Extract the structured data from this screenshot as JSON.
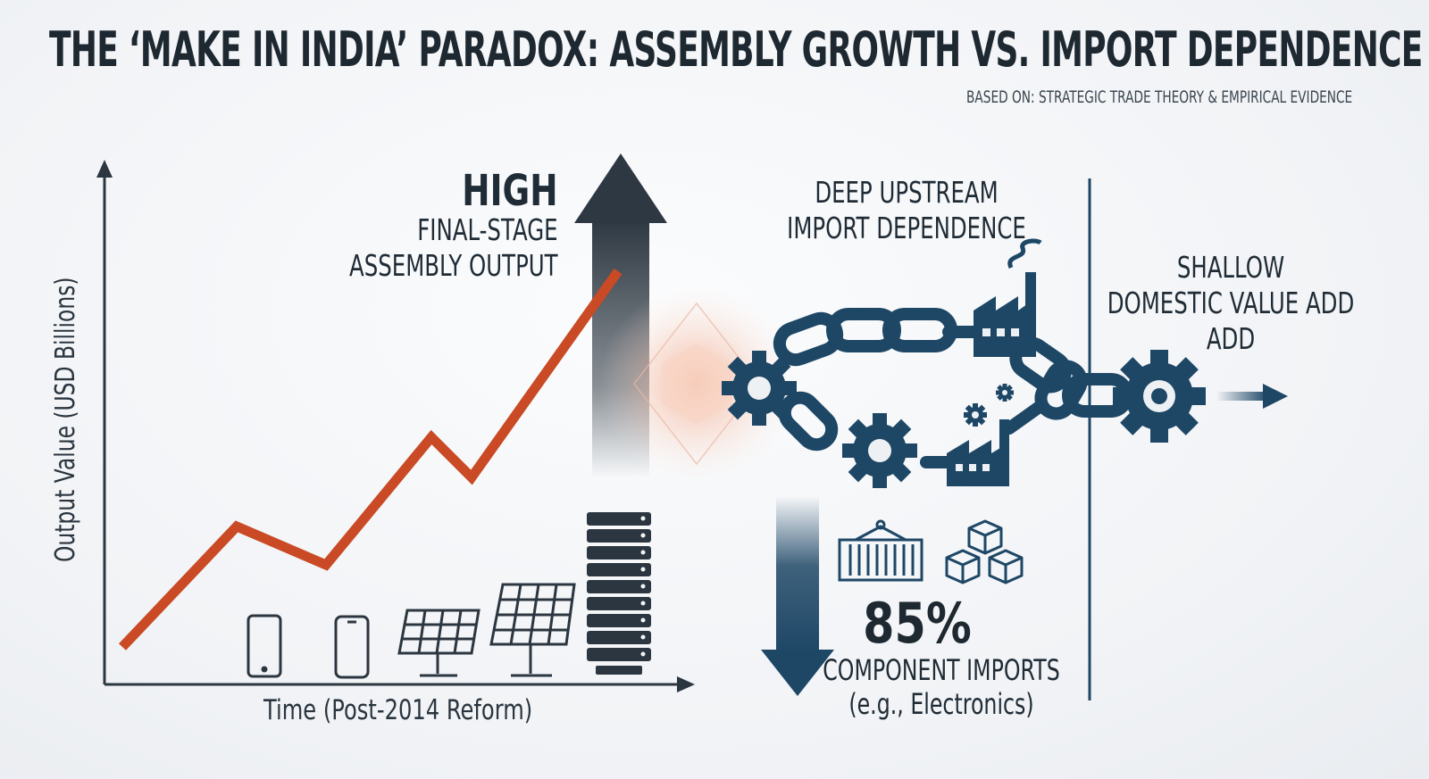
{
  "title": "THE ‘MAKE IN INDIA’ PARADOX: ASSEMBLY GROWTH VS. IMPORT DEPENDENCE",
  "subtitle": "BASED ON: STRATEGIC TRADE THEORY & EMPIRICAL EVIDENCE",
  "high": {
    "word": "HIGH",
    "lines": [
      "FINAL-STAGE",
      "ASSEMBLY OUTPUT"
    ]
  },
  "upstream": {
    "lines": [
      "DEEP UPSTREAM",
      "IMPORT DEPENDENCE"
    ]
  },
  "shallow": {
    "lines": [
      "SHALLOW",
      "DOMESTIC VALUE ADD",
      "ADD"
    ]
  },
  "imports": {
    "value": "85%",
    "lines": [
      "COMPONENT IMPORTS",
      "(e.g., Electronics)"
    ]
  },
  "axes": {
    "x_label": "Time (Post-2014 Reform)",
    "y_label": "Output Value (USD Billions)"
  },
  "colors": {
    "line": "#c94a24",
    "navy": "#1e4766",
    "dark": "#2c3640"
  },
  "icons": [
    "smartphone-icon",
    "smartphone-icon",
    "solar-panel-icon",
    "solar-panel-icon",
    "server-rack-icon",
    "chain-icon",
    "gear-icon",
    "factory-icon",
    "shipping-container-icon",
    "boxes-icon",
    "arrow-right-icon"
  ]
}
